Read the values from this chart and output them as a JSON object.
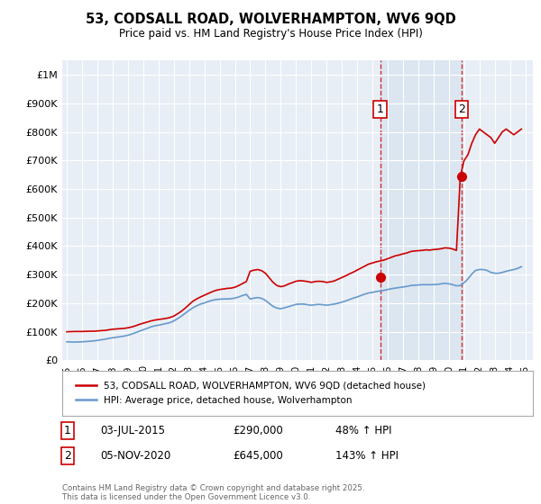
{
  "title": "53, CODSALL ROAD, WOLVERHAMPTON, WV6 9QD",
  "subtitle": "Price paid vs. HM Land Registry's House Price Index (HPI)",
  "background_color": "#ffffff",
  "plot_bg_color": "#e8eef5",
  "ylim": [
    0,
    1050000
  ],
  "yticks": [
    0,
    100000,
    200000,
    300000,
    400000,
    500000,
    600000,
    700000,
    800000,
    900000,
    1000000
  ],
  "ytick_labels": [
    "£0",
    "£100K",
    "£200K",
    "£300K",
    "£400K",
    "£500K",
    "£600K",
    "£700K",
    "£800K",
    "£900K",
    "£1M"
  ],
  "xlim_start": 1994.7,
  "xlim_end": 2025.5,
  "xtick_years": [
    1995,
    1996,
    1997,
    1998,
    1999,
    2000,
    2001,
    2002,
    2003,
    2004,
    2005,
    2006,
    2007,
    2008,
    2009,
    2010,
    2011,
    2012,
    2013,
    2014,
    2015,
    2016,
    2017,
    2018,
    2019,
    2020,
    2021,
    2022,
    2023,
    2024,
    2025
  ],
  "red_line_color": "#cc0000",
  "blue_line_color": "#6699cc",
  "shade_color": "#c8d8e8",
  "sale1_x": 2015.5,
  "sale1_y": 290000,
  "sale1_label": "1",
  "sale1_date": "03-JUL-2015",
  "sale1_price": "£290,000",
  "sale1_hpi": "48% ↑ HPI",
  "sale2_x": 2020.84,
  "sale2_y": 645000,
  "sale2_label": "2",
  "sale2_date": "05-NOV-2020",
  "sale2_price": "£645,000",
  "sale2_hpi": "143% ↑ HPI",
  "legend1": "53, CODSALL ROAD, WOLVERHAMPTON, WV6 9QD (detached house)",
  "legend2": "HPI: Average price, detached house, Wolverhampton",
  "footnote": "Contains HM Land Registry data © Crown copyright and database right 2025.\nThis data is licensed under the Open Government Licence v3.0.",
  "hpi_data": {
    "years": [
      1995.0,
      1995.25,
      1995.5,
      1995.75,
      1996.0,
      1996.25,
      1996.5,
      1996.75,
      1997.0,
      1997.25,
      1997.5,
      1997.75,
      1998.0,
      1998.25,
      1998.5,
      1998.75,
      1999.0,
      1999.25,
      1999.5,
      1999.75,
      2000.0,
      2000.25,
      2000.5,
      2000.75,
      2001.0,
      2001.25,
      2001.5,
      2001.75,
      2002.0,
      2002.25,
      2002.5,
      2002.75,
      2003.0,
      2003.25,
      2003.5,
      2003.75,
      2004.0,
      2004.25,
      2004.5,
      2004.75,
      2005.0,
      2005.25,
      2005.5,
      2005.75,
      2006.0,
      2006.25,
      2006.5,
      2006.75,
      2007.0,
      2007.25,
      2007.5,
      2007.75,
      2008.0,
      2008.25,
      2008.5,
      2008.75,
      2009.0,
      2009.25,
      2009.5,
      2009.75,
      2010.0,
      2010.25,
      2010.5,
      2010.75,
      2011.0,
      2011.25,
      2011.5,
      2011.75,
      2012.0,
      2012.25,
      2012.5,
      2012.75,
      2013.0,
      2013.25,
      2013.5,
      2013.75,
      2014.0,
      2014.25,
      2014.5,
      2014.75,
      2015.0,
      2015.25,
      2015.5,
      2015.75,
      2016.0,
      2016.25,
      2016.5,
      2016.75,
      2017.0,
      2017.25,
      2017.5,
      2017.75,
      2018.0,
      2018.25,
      2018.5,
      2018.75,
      2019.0,
      2019.25,
      2019.5,
      2019.75,
      2020.0,
      2020.25,
      2020.5,
      2020.75,
      2021.0,
      2021.25,
      2021.5,
      2021.75,
      2022.0,
      2022.25,
      2022.5,
      2022.75,
      2023.0,
      2023.25,
      2023.5,
      2023.75,
      2024.0,
      2024.25,
      2024.5,
      2024.75
    ],
    "hpi_values": [
      65000,
      64500,
      64000,
      64500,
      65000,
      66000,
      67000,
      68000,
      70000,
      72000,
      74000,
      77000,
      79000,
      81000,
      83000,
      85000,
      88000,
      92000,
      97000,
      102000,
      107000,
      112000,
      117000,
      121000,
      123000,
      126000,
      129000,
      132000,
      138000,
      146000,
      155000,
      165000,
      175000,
      184000,
      191000,
      197000,
      201000,
      206000,
      210000,
      213000,
      214000,
      215000,
      215000,
      216000,
      218000,
      222000,
      227000,
      231000,
      215000,
      218000,
      220000,
      217000,
      210000,
      199000,
      189000,
      183000,
      181000,
      184000,
      188000,
      192000,
      196000,
      197000,
      197000,
      195000,
      193000,
      195000,
      196000,
      195000,
      193000,
      195000,
      197000,
      200000,
      204000,
      208000,
      213000,
      218000,
      222000,
      227000,
      232000,
      236000,
      238000,
      241000,
      243000,
      245000,
      248000,
      251000,
      253000,
      255000,
      257000,
      259000,
      262000,
      263000,
      264000,
      265000,
      265000,
      265000,
      265000,
      266000,
      268000,
      270000,
      268000,
      265000,
      261000,
      262000,
      272000,
      285000,
      302000,
      315000,
      318000,
      318000,
      315000,
      308000,
      305000,
      305000,
      308000,
      312000,
      315000,
      318000,
      322000,
      328000
    ],
    "red_values": [
      100000,
      100500,
      101000,
      101000,
      101000,
      101500,
      102000,
      102000,
      103000,
      104000,
      105000,
      107000,
      109000,
      110000,
      111000,
      112000,
      114000,
      117000,
      121000,
      126000,
      130000,
      134000,
      138000,
      141000,
      143000,
      145000,
      147000,
      150000,
      155000,
      163000,
      172000,
      183000,
      195000,
      207000,
      215000,
      222000,
      228000,
      234000,
      240000,
      245000,
      248000,
      250000,
      252000,
      253000,
      256000,
      262000,
      269000,
      276000,
      312000,
      316000,
      318000,
      314000,
      305000,
      289000,
      273000,
      262000,
      258000,
      261000,
      267000,
      272000,
      277000,
      279000,
      278000,
      276000,
      273000,
      276000,
      277000,
      276000,
      273000,
      275000,
      278000,
      284000,
      290000,
      296000,
      303000,
      309000,
      316000,
      323000,
      330000,
      337000,
      341000,
      345000,
      348000,
      351000,
      356000,
      361000,
      366000,
      369000,
      373000,
      376000,
      381000,
      383000,
      384000,
      385000,
      387000,
      386000,
      388000,
      389000,
      391000,
      394000,
      393000,
      390000,
      385000,
      645000,
      700000,
      720000,
      760000,
      790000,
      810000,
      800000,
      790000,
      780000,
      760000,
      780000,
      800000,
      810000,
      800000,
      790000,
      800000,
      810000
    ]
  }
}
